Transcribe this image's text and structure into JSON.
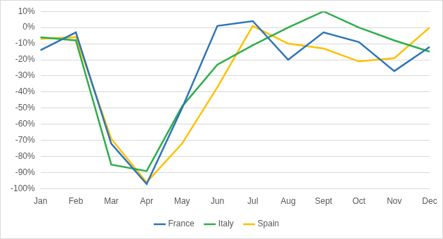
{
  "chart_data": {
    "type": "line",
    "categories": [
      "Jan",
      "Feb",
      "Mar",
      "Apr",
      "May",
      "Jun",
      "Jul",
      "Aug",
      "Sept",
      "Oct",
      "Nov",
      "Dec"
    ],
    "series": [
      {
        "name": "France",
        "color": "#2e75b6",
        "values": [
          -14,
          -3,
          -72,
          -97,
          -50,
          1,
          4,
          -20,
          -3,
          -9,
          -27,
          -12
        ]
      },
      {
        "name": "Italy",
        "color": "#2eae4a",
        "values": [
          -6,
          -8,
          -85,
          -89,
          -49,
          -23,
          -11,
          0,
          10,
          0,
          -8,
          -15
        ]
      },
      {
        "name": "Spain",
        "color": "#ffc000",
        "values": [
          -7,
          -6,
          -69,
          -96,
          -72,
          -37,
          1,
          -10,
          -13,
          -21,
          -19,
          0
        ]
      }
    ],
    "ylim": [
      -100,
      10
    ],
    "yticks": [
      {
        "value": 10,
        "label": "10%"
      },
      {
        "value": 0,
        "label": "0%"
      },
      {
        "value": -10,
        "label": "-10%"
      },
      {
        "value": -20,
        "label": "-20%"
      },
      {
        "value": -30,
        "label": "-30%"
      },
      {
        "value": -40,
        "label": "-40%"
      },
      {
        "value": -50,
        "label": "-50%"
      },
      {
        "value": -60,
        "label": "-60%"
      },
      {
        "value": -70,
        "label": "-70%"
      },
      {
        "value": -80,
        "label": "-80%"
      },
      {
        "value": -90,
        "label": "-90%"
      },
      {
        "value": -100,
        "label": "-100%"
      }
    ],
    "grid": true,
    "legend": "bottom"
  }
}
